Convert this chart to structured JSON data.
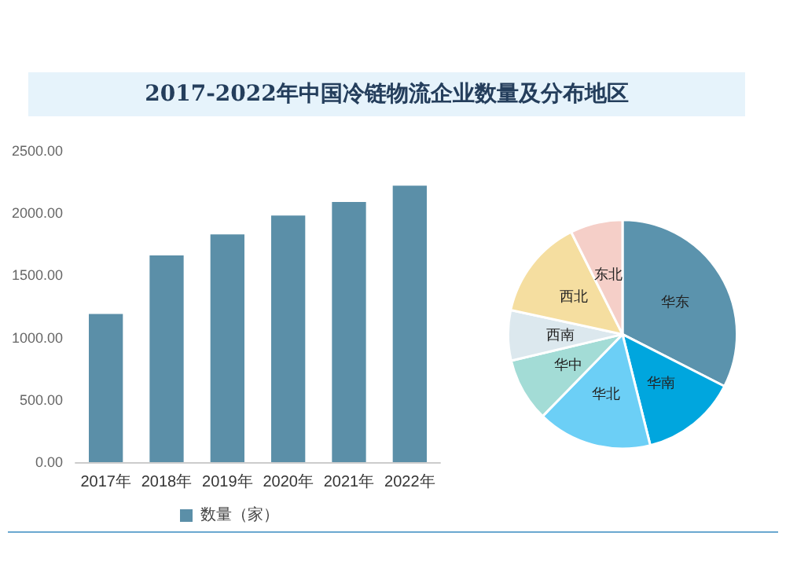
{
  "chart_data": [
    {
      "type": "bar",
      "title": "2017-2022年中国冷链物流企业数量及分布地区",
      "categories": [
        "2017年",
        "2018年",
        "2019年",
        "2020年",
        "2021年",
        "2022年"
      ],
      "series": [
        {
          "name": "数量（家）",
          "color": "#5b8fa8",
          "values": [
            1190,
            1660,
            1830,
            1980,
            2090,
            2220
          ]
        }
      ],
      "ylim": [
        0,
        2500
      ],
      "yticks": [
        {
          "value": 0,
          "label": "0.00"
        },
        {
          "value": 500,
          "label": "500.00"
        },
        {
          "value": 1000,
          "label": "1000.00"
        },
        {
          "value": 1500,
          "label": "1500.00"
        },
        {
          "value": 2000,
          "label": "2000.00"
        },
        {
          "value": 2500,
          "label": "2500.00"
        }
      ],
      "grid": false,
      "legend": "bottom"
    },
    {
      "type": "pie",
      "categories": [
        "华东",
        "华南",
        "华北",
        "华中",
        "西南",
        "西北",
        "东北"
      ],
      "values": [
        32.5,
        13.6,
        16.2,
        9,
        7.1,
        14.2,
        7.4
      ],
      "colors": [
        "#5b93ad",
        "#00a6de",
        "#6ccff6",
        "#a3dcd6",
        "#dce8ee",
        "#f5dea0",
        "#f5cfc8"
      ],
      "legend": false
    }
  ]
}
